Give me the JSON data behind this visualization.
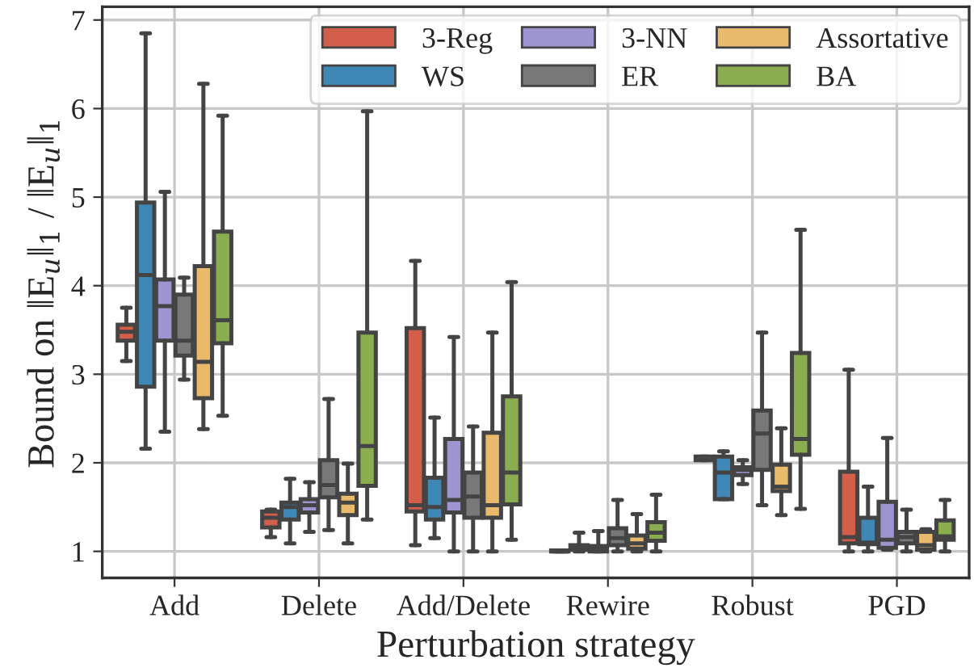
{
  "chart_data": {
    "type": "box",
    "xlabel": "Perturbation strategy",
    "ylabel": "Bound on ‖E$_{u}$‖$_{1}$ / ‖E$_{u}$‖$_{1}$",
    "categories": [
      "Add",
      "Delete",
      "Add/Delete",
      "Rewire",
      "Robust",
      "PGD"
    ],
    "ylim": [
      0.7,
      7.15
    ],
    "yticks": [
      1,
      2,
      3,
      4,
      5,
      6,
      7
    ],
    "grid": true,
    "legend": "top right",
    "series": [
      {
        "name": "3-Reg",
        "color": "#d35f4b",
        "boxes": [
          {
            "low": 3.15,
            "q1": 3.38,
            "median": 3.48,
            "q3": 3.56,
            "high": 3.75
          },
          {
            "low": 1.16,
            "q1": 1.27,
            "median": 1.38,
            "q3": 1.45,
            "high": 1.47
          },
          {
            "low": 1.07,
            "q1": 1.45,
            "median": 1.52,
            "q3": 3.52,
            "high": 4.28
          },
          {
            "low": 1.0,
            "q1": 1.0,
            "median": 1.0,
            "q3": 1.01,
            "high": 1.01
          },
          {
            "low": 2.03,
            "q1": 2.03,
            "median": 2.05,
            "q3": 2.07,
            "high": 2.07
          },
          {
            "low": 1.0,
            "q1": 1.09,
            "median": 1.16,
            "q3": 1.9,
            "high": 3.05
          }
        ]
      },
      {
        "name": "WS",
        "color": "#3f87b4",
        "boxes": [
          {
            "low": 2.16,
            "q1": 2.86,
            "median": 4.12,
            "q3": 4.94,
            "high": 6.85
          },
          {
            "low": 1.09,
            "q1": 1.36,
            "median": 1.5,
            "q3": 1.55,
            "high": 1.82
          },
          {
            "low": 1.15,
            "q1": 1.36,
            "median": 1.5,
            "q3": 1.83,
            "high": 2.51
          },
          {
            "low": 1.0,
            "q1": 1.02,
            "median": 1.04,
            "q3": 1.07,
            "high": 1.21
          },
          {
            "low": 1.59,
            "q1": 1.59,
            "median": 1.89,
            "q3": 2.07,
            "high": 2.13
          },
          {
            "low": 1.0,
            "q1": 1.08,
            "median": 1.1,
            "q3": 1.38,
            "high": 1.73
          }
        ]
      },
      {
        "name": "3-NN",
        "color": "#9d95cf",
        "boxes": [
          {
            "low": 2.35,
            "q1": 3.38,
            "median": 3.77,
            "q3": 4.07,
            "high": 5.06
          },
          {
            "low": 1.22,
            "q1": 1.44,
            "median": 1.52,
            "q3": 1.59,
            "high": 1.78
          },
          {
            "low": 1.0,
            "q1": 1.44,
            "median": 1.58,
            "q3": 2.27,
            "high": 3.42
          },
          {
            "low": 1.0,
            "q1": 1.0,
            "median": 1.03,
            "q3": 1.06,
            "high": 1.23
          },
          {
            "low": 1.76,
            "q1": 1.86,
            "median": 1.92,
            "q3": 1.95,
            "high": 2.03
          },
          {
            "low": 1.02,
            "q1": 1.04,
            "median": 1.13,
            "q3": 1.56,
            "high": 2.28
          }
        ]
      },
      {
        "name": "ER",
        "color": "#787878",
        "boxes": [
          {
            "low": 2.94,
            "q1": 3.21,
            "median": 3.38,
            "q3": 3.9,
            "high": 4.09
          },
          {
            "low": 1.24,
            "q1": 1.61,
            "median": 1.75,
            "q3": 2.03,
            "high": 2.72
          },
          {
            "low": 1.0,
            "q1": 1.38,
            "median": 1.62,
            "q3": 1.89,
            "high": 2.41
          },
          {
            "low": 1.0,
            "q1": 1.07,
            "median": 1.15,
            "q3": 1.26,
            "high": 1.58
          },
          {
            "low": 1.52,
            "q1": 1.92,
            "median": 2.33,
            "q3": 2.59,
            "high": 3.47
          },
          {
            "low": 1.0,
            "q1": 1.09,
            "median": 1.16,
            "q3": 1.22,
            "high": 1.47
          }
        ]
      },
      {
        "name": "Assortative",
        "color": "#e9b96c",
        "boxes": [
          {
            "low": 2.38,
            "q1": 2.73,
            "median": 3.14,
            "q3": 4.22,
            "high": 6.28
          },
          {
            "low": 1.09,
            "q1": 1.41,
            "median": 1.55,
            "q3": 1.65,
            "high": 1.99
          },
          {
            "low": 1.0,
            "q1": 1.38,
            "median": 1.52,
            "q3": 2.34,
            "high": 3.47
          },
          {
            "low": 1.0,
            "q1": 1.03,
            "median": 1.09,
            "q3": 1.18,
            "high": 1.42
          },
          {
            "low": 1.41,
            "q1": 1.68,
            "median": 1.73,
            "q3": 1.98,
            "high": 2.39
          },
          {
            "low": 1.0,
            "q1": 1.02,
            "median": 1.07,
            "q3": 1.22,
            "high": 1.25
          }
        ]
      },
      {
        "name": "BA",
        "color": "#8aad4f",
        "boxes": [
          {
            "low": 2.53,
            "q1": 3.35,
            "median": 3.61,
            "q3": 4.61,
            "high": 5.92
          },
          {
            "low": 1.36,
            "q1": 1.74,
            "median": 2.19,
            "q3": 3.47,
            "high": 5.97
          },
          {
            "low": 1.13,
            "q1": 1.53,
            "median": 1.89,
            "q3": 2.75,
            "high": 4.04
          },
          {
            "low": 1.0,
            "q1": 1.12,
            "median": 1.21,
            "q3": 1.33,
            "high": 1.64
          },
          {
            "low": 1.48,
            "q1": 2.09,
            "median": 2.27,
            "q3": 3.24,
            "high": 4.63
          },
          {
            "low": 1.0,
            "q1": 1.13,
            "median": 1.17,
            "q3": 1.35,
            "high": 1.58
          }
        ]
      }
    ]
  }
}
